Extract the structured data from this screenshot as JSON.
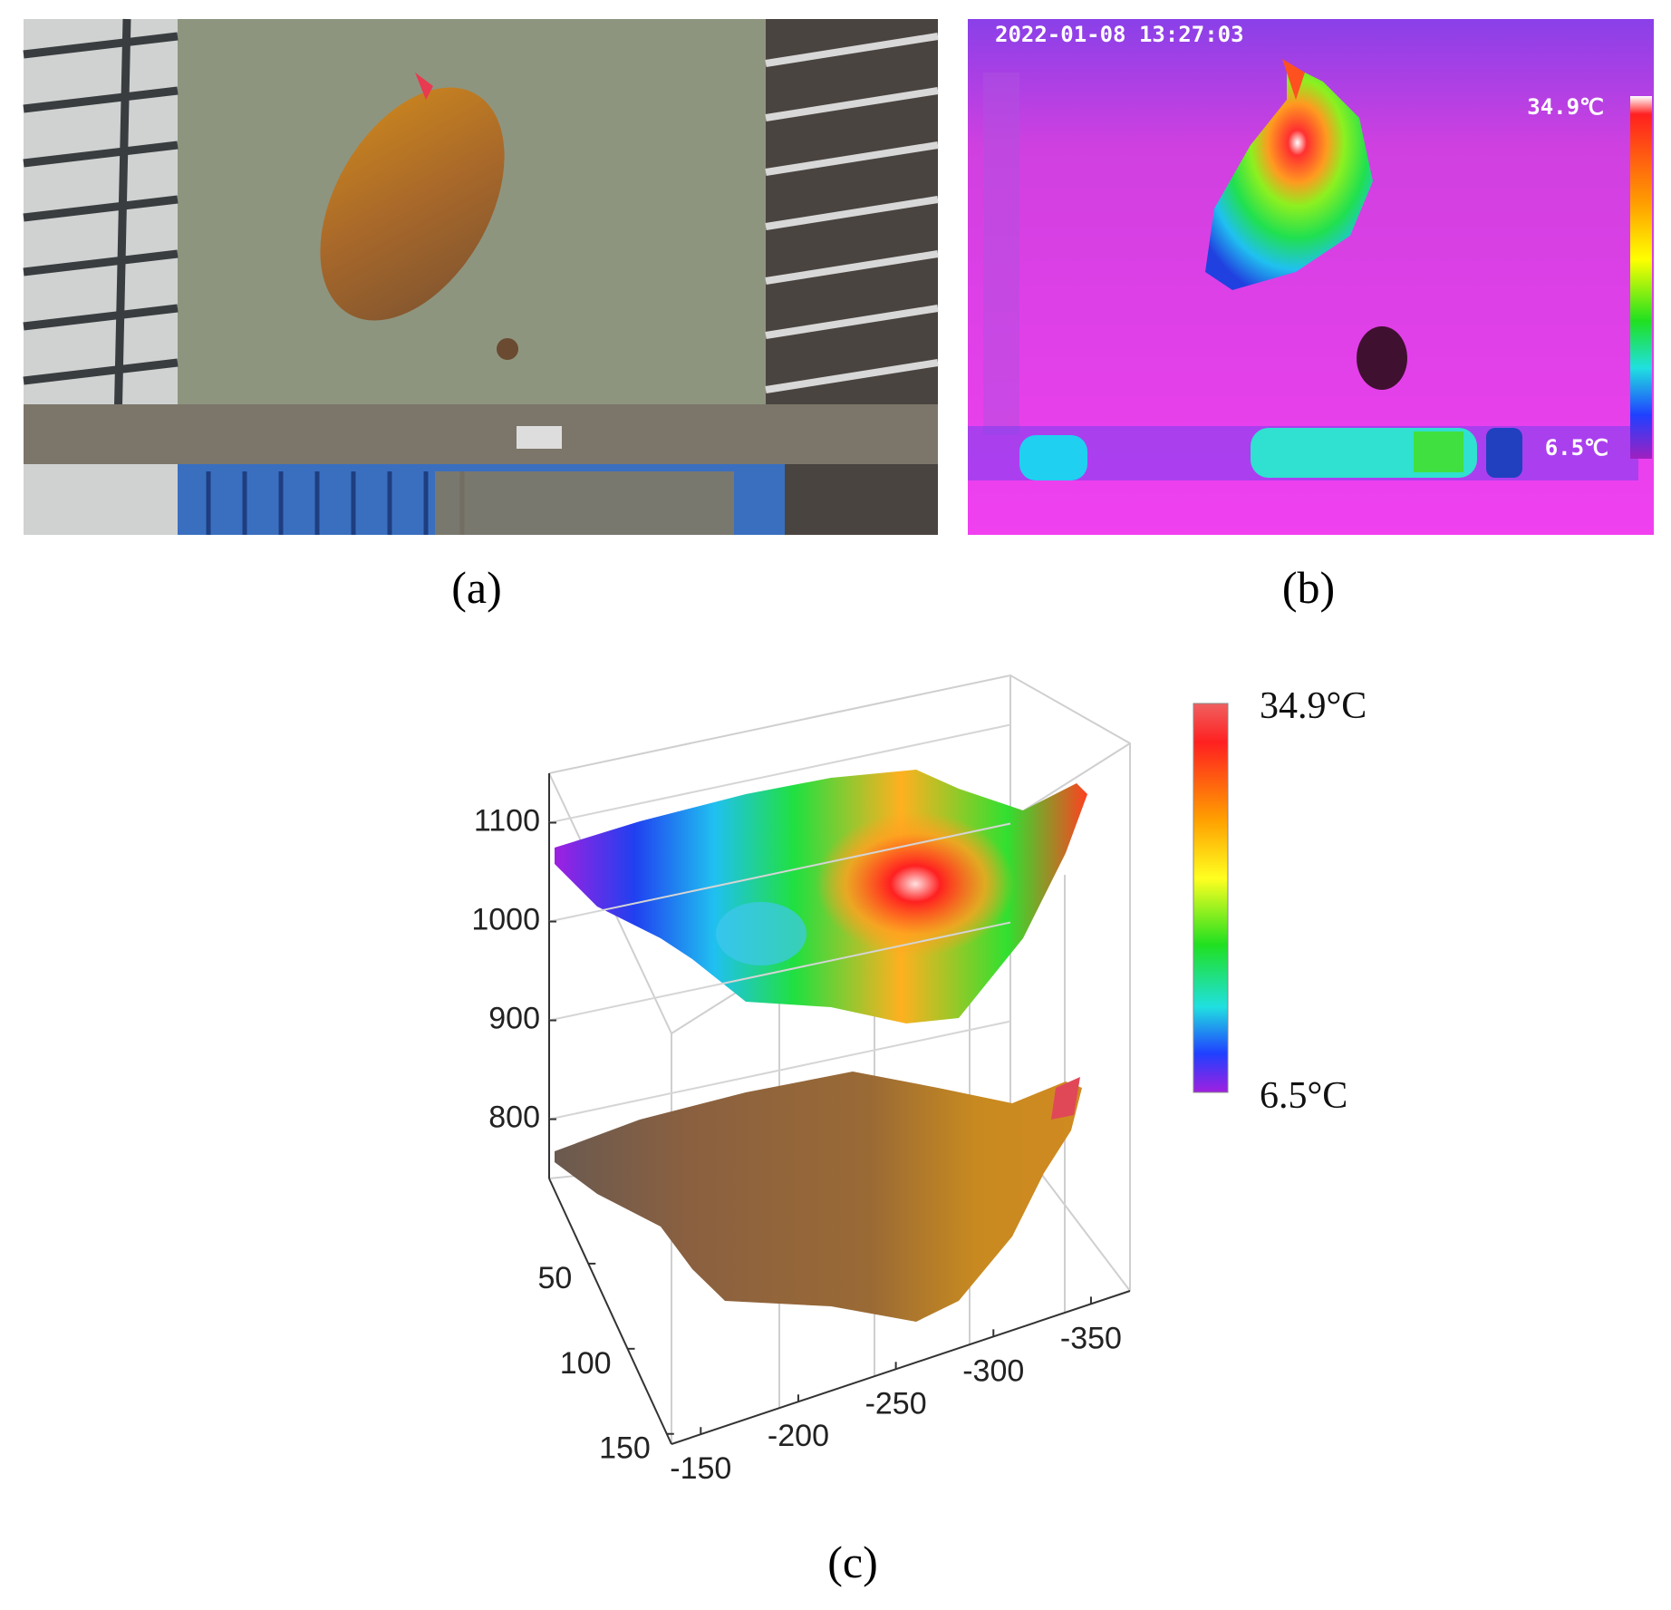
{
  "panels": {
    "a": {
      "label": "(a)"
    },
    "b": {
      "label": "(b)",
      "timestamp": "2022-01-08 13:27:03",
      "scale_max": "34.9℃",
      "scale_min": "6.5℃"
    },
    "c": {
      "label": "(c)"
    }
  },
  "chart_data": {
    "type": "point-cloud",
    "colorbar": {
      "max_label": "34.9°C",
      "min_label": "6.5°C"
    },
    "xlim": [
      -135,
      -370
    ],
    "xticks": [
      -150,
      -200,
      -250,
      -300,
      -350
    ],
    "ylim": [
      0,
      156
    ],
    "yticks": [
      50,
      100,
      150
    ],
    "zlim": [
      740,
      1150
    ],
    "zticks": [
      800,
      900,
      1000,
      1100
    ]
  }
}
